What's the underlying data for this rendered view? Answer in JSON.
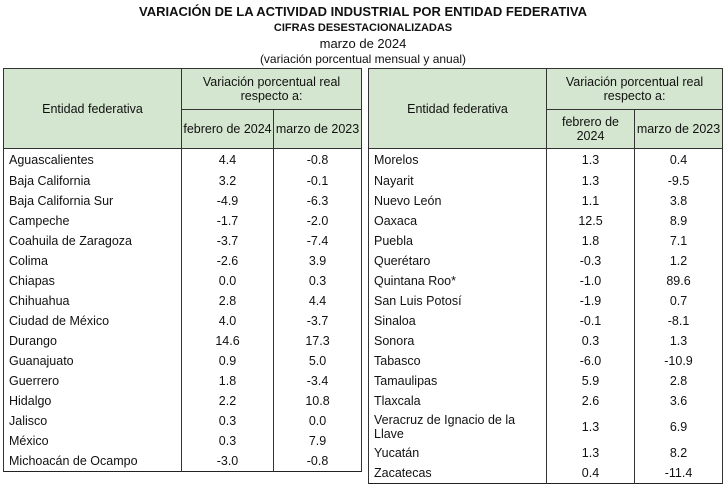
{
  "header": {
    "title": "VARIACIÓN DE LA ACTIVIDAD INDUSTRIAL POR ENTIDAD FEDERATIVA",
    "subtitle": "CIFRAS DESESTACIONALIZADAS",
    "period": "marzo de 2024",
    "note": "(variación porcentual mensual y anual)"
  },
  "columns": {
    "entity": "Entidad federativa",
    "group": "Variación porcentual real respecto a:",
    "col1": "febrero de 2024",
    "col2": "marzo de 2023"
  },
  "left_rows": [
    {
      "name": "Aguascalientes",
      "feb": "4.4",
      "mar": "-0.8"
    },
    {
      "name": "Baja California",
      "feb": "3.2",
      "mar": "-0.1"
    },
    {
      "name": "Baja California Sur",
      "feb": "-4.9",
      "mar": "-6.3"
    },
    {
      "name": "Campeche",
      "feb": "-1.7",
      "mar": "-2.0"
    },
    {
      "name": "Coahuila de Zaragoza",
      "feb": "-3.7",
      "mar": "-7.4"
    },
    {
      "name": "Colima",
      "feb": "-2.6",
      "mar": "3.9"
    },
    {
      "name": "Chiapas",
      "feb": "0.0",
      "mar": "0.3"
    },
    {
      "name": "Chihuahua",
      "feb": "2.8",
      "mar": "4.4"
    },
    {
      "name": "Ciudad de México",
      "feb": "4.0",
      "mar": "-3.7"
    },
    {
      "name": "Durango",
      "feb": "14.6",
      "mar": "17.3"
    },
    {
      "name": "Guanajuato",
      "feb": "0.9",
      "mar": "5.0"
    },
    {
      "name": "Guerrero",
      "feb": "1.8",
      "mar": "-3.4"
    },
    {
      "name": "Hidalgo",
      "feb": "2.2",
      "mar": "10.8"
    },
    {
      "name": "Jalisco",
      "feb": "0.3",
      "mar": "0.0"
    },
    {
      "name": "México",
      "feb": "0.3",
      "mar": "7.9"
    },
    {
      "name": "Michoacán de Ocampo",
      "feb": "-3.0",
      "mar": "-0.8"
    }
  ],
  "right_rows": [
    {
      "name": "Morelos",
      "feb": "1.3",
      "mar": "0.4"
    },
    {
      "name": "Nayarit",
      "feb": "1.3",
      "mar": "-9.5"
    },
    {
      "name": "Nuevo León",
      "feb": "1.1",
      "mar": "3.8"
    },
    {
      "name": "Oaxaca",
      "feb": "12.5",
      "mar": "8.9"
    },
    {
      "name": "Puebla",
      "feb": "1.8",
      "mar": "7.1"
    },
    {
      "name": "Querétaro",
      "feb": "-0.3",
      "mar": "1.2"
    },
    {
      "name": "Quintana Roo*",
      "feb": "-1.0",
      "mar": "89.6"
    },
    {
      "name": "San Luis Potosí",
      "feb": "-1.9",
      "mar": "0.7"
    },
    {
      "name": "Sinaloa",
      "feb": "-0.1",
      "mar": "-8.1"
    },
    {
      "name": "Sonora",
      "feb": "0.3",
      "mar": "1.3"
    },
    {
      "name": "Tabasco",
      "feb": "-6.0",
      "mar": "-10.9"
    },
    {
      "name": "Tamaulipas",
      "feb": "5.9",
      "mar": "2.8"
    },
    {
      "name": "Tlaxcala",
      "feb": "2.6",
      "mar": "3.6"
    },
    {
      "name": "Veracruz de Ignacio de la Llave",
      "feb": "1.3",
      "mar": "6.9"
    },
    {
      "name": "Yucatán",
      "feb": "1.3",
      "mar": "8.2"
    },
    {
      "name": "Zacatecas",
      "feb": "0.4",
      "mar": "-11.4"
    }
  ]
}
